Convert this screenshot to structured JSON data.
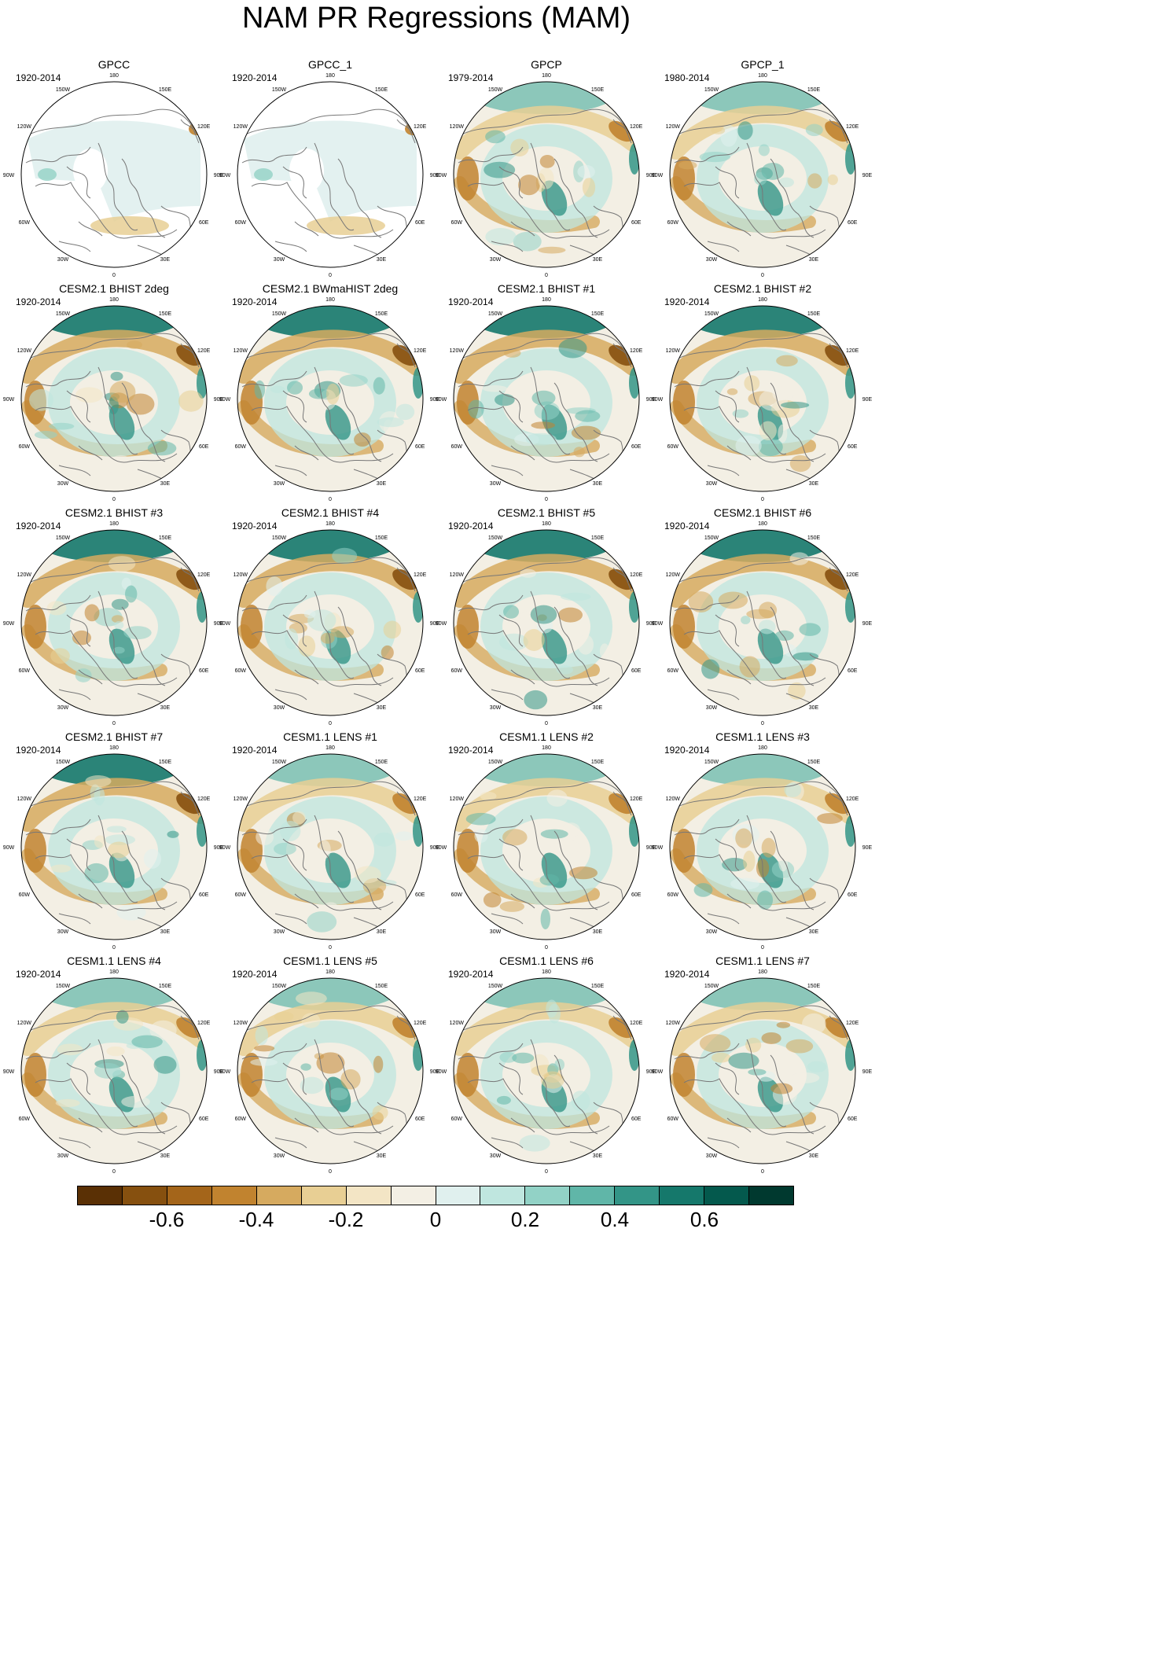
{
  "title": "NAM PR Regressions (MAM)",
  "panels": [
    {
      "title": "GPCC",
      "years": "1920-2014"
    },
    {
      "title": "GPCC_1",
      "years": "1920-2014"
    },
    {
      "title": "GPCP",
      "years": "1979-2014"
    },
    {
      "title": "GPCP_1",
      "years": "1980-2014"
    },
    {
      "title": "CESM2.1 BHIST 2deg",
      "years": "1920-2014"
    },
    {
      "title": "CESM2.1 BWmaHIST 2deg",
      "years": "1920-2014"
    },
    {
      "title": "CESM2.1 BHIST #1",
      "years": "1920-2014"
    },
    {
      "title": "CESM2.1 BHIST #2",
      "years": "1920-2014"
    },
    {
      "title": "CESM2.1 BHIST #3",
      "years": "1920-2014"
    },
    {
      "title": "CESM2.1 BHIST #4",
      "years": "1920-2014"
    },
    {
      "title": "CESM2.1 BHIST #5",
      "years": "1920-2014"
    },
    {
      "title": "CESM2.1 BHIST #6",
      "years": "1920-2014"
    },
    {
      "title": "CESM2.1 BHIST #7",
      "years": "1920-2014"
    },
    {
      "title": "CESM1.1 LENS #1",
      "years": "1920-2014"
    },
    {
      "title": "CESM1.1 LENS #2",
      "years": "1920-2014"
    },
    {
      "title": "CESM1.1 LENS #3",
      "years": "1920-2014"
    },
    {
      "title": "CESM1.1 LENS #4",
      "years": "1920-2014"
    },
    {
      "title": "CESM1.1 LENS #5",
      "years": "1920-2014"
    },
    {
      "title": "CESM1.1 LENS #6",
      "years": "1920-2014"
    },
    {
      "title": "CESM1.1 LENS #7",
      "years": "1920-2014"
    }
  ],
  "map_labels": {
    "top": "180",
    "bottom": "0",
    "left": "90W",
    "right": "90E",
    "upper_left_1": "150W",
    "upper_left_2": "120W",
    "lower_left_1": "60W",
    "lower_left_2": "30W",
    "upper_right_1": "150E",
    "upper_right_2": "120E",
    "lower_right_1": "60E",
    "lower_right_2": "30E"
  },
  "colorbar": {
    "colors": [
      "#5a3005",
      "#86500f",
      "#a4651a",
      "#c1832f",
      "#d6aa5f",
      "#e8cf94",
      "#f3e5c5",
      "#f3efe4",
      "#e0f0ee",
      "#bfe6df",
      "#92d2c6",
      "#60b6a8",
      "#339587",
      "#15786b",
      "#04594d",
      "#00392f"
    ],
    "labels": [
      "-0.6",
      "-0.4",
      "-0.2",
      "0",
      "0.2",
      "0.4",
      "0.6"
    ]
  },
  "colors": {
    "coastline": "#777777",
    "missing": "#ffffff"
  }
}
